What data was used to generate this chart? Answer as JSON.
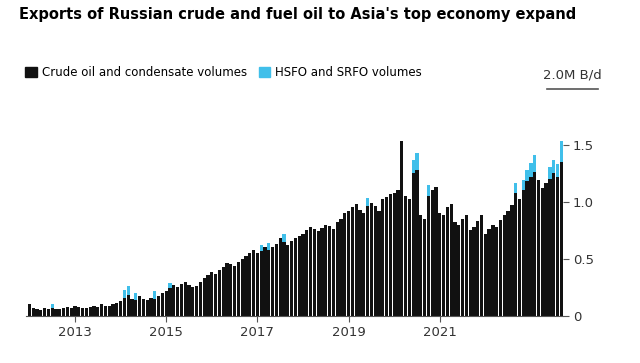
{
  "title": "Exports of Russian crude and fuel oil to Asia's top economy expand",
  "legend_crude": "Crude oil and condensate volumes",
  "legend_hsfo": "HSFO and SRFO volumes",
  "ylabel_top": "2.0M B/d",
  "yticks": [
    0,
    0.5,
    1.0,
    1.5
  ],
  "ytick_labels": [
    "0",
    "0.5",
    "1.0",
    "1.5"
  ],
  "xtick_labels": [
    "2013",
    "2015",
    "2017",
    "2019",
    "2021"
  ],
  "background_color": "#ffffff",
  "crude_color": "#111111",
  "hsfo_color": "#40bfea",
  "crude_volumes": [
    0.1,
    0.07,
    0.06,
    0.05,
    0.07,
    0.06,
    0.07,
    0.06,
    0.06,
    0.07,
    0.08,
    0.07,
    0.09,
    0.08,
    0.07,
    0.07,
    0.08,
    0.09,
    0.08,
    0.1,
    0.09,
    0.09,
    0.1,
    0.11,
    0.13,
    0.16,
    0.18,
    0.15,
    0.14,
    0.17,
    0.15,
    0.14,
    0.16,
    0.15,
    0.17,
    0.2,
    0.22,
    0.24,
    0.27,
    0.25,
    0.28,
    0.3,
    0.27,
    0.25,
    0.26,
    0.3,
    0.33,
    0.36,
    0.38,
    0.37,
    0.4,
    0.43,
    0.46,
    0.45,
    0.44,
    0.47,
    0.5,
    0.52,
    0.55,
    0.58,
    0.55,
    0.57,
    0.6,
    0.58,
    0.6,
    0.63,
    0.68,
    0.65,
    0.62,
    0.66,
    0.68,
    0.7,
    0.72,
    0.75,
    0.78,
    0.76,
    0.74,
    0.77,
    0.8,
    0.79,
    0.76,
    0.82,
    0.85,
    0.9,
    0.92,
    0.95,
    0.98,
    0.93,
    0.9,
    0.96,
    0.99,
    0.96,
    0.92,
    1.02,
    1.04,
    1.07,
    1.08,
    1.1,
    1.53,
    1.05,
    1.02,
    1.25,
    1.28,
    0.88,
    0.85,
    1.05,
    1.1,
    1.13,
    0.9,
    0.88,
    0.95,
    0.98,
    0.82,
    0.8,
    0.85,
    0.88,
    0.75,
    0.78,
    0.83,
    0.88,
    0.72,
    0.76,
    0.8,
    0.78,
    0.84,
    0.88,
    0.92,
    0.97,
    1.08,
    1.02,
    1.1,
    1.18,
    1.22,
    1.26,
    1.19,
    1.12,
    1.16,
    1.2,
    1.25,
    1.22,
    1.35
  ],
  "hsfo_volumes": [
    0,
    0,
    0,
    0,
    0,
    0,
    0.03,
    0,
    0,
    0,
    0,
    0,
    0,
    0,
    0,
    0,
    0,
    0,
    0,
    0,
    0,
    0,
    0,
    0,
    0,
    0.07,
    0.08,
    0,
    0.06,
    0,
    0,
    0,
    0,
    0.07,
    0,
    0,
    0,
    0.05,
    0,
    0,
    0,
    0,
    0,
    0,
    0,
    0,
    0,
    0,
    0,
    0,
    0,
    0,
    0,
    0,
    0,
    0,
    0,
    0,
    0,
    0,
    0,
    0.05,
    0,
    0.06,
    0,
    0,
    0,
    0.07,
    0,
    0,
    0,
    0,
    0,
    0,
    0,
    0,
    0,
    0,
    0,
    0,
    0,
    0,
    0,
    0,
    0,
    0,
    0,
    0,
    0,
    0.07,
    0,
    0,
    0,
    0,
    0,
    0,
    0,
    0,
    0,
    0,
    0,
    0.12,
    0.15,
    0,
    0,
    0.1,
    0,
    0,
    0,
    0,
    0,
    0,
    0,
    0,
    0,
    0,
    0,
    0,
    0,
    0,
    0,
    0,
    0,
    0,
    0,
    0,
    0,
    0,
    0.08,
    0,
    0.09,
    0.1,
    0.12,
    0.15,
    0,
    0,
    0,
    0.1,
    0.12,
    0.11,
    0.18
  ],
  "ylim": [
    0,
    1.75
  ]
}
